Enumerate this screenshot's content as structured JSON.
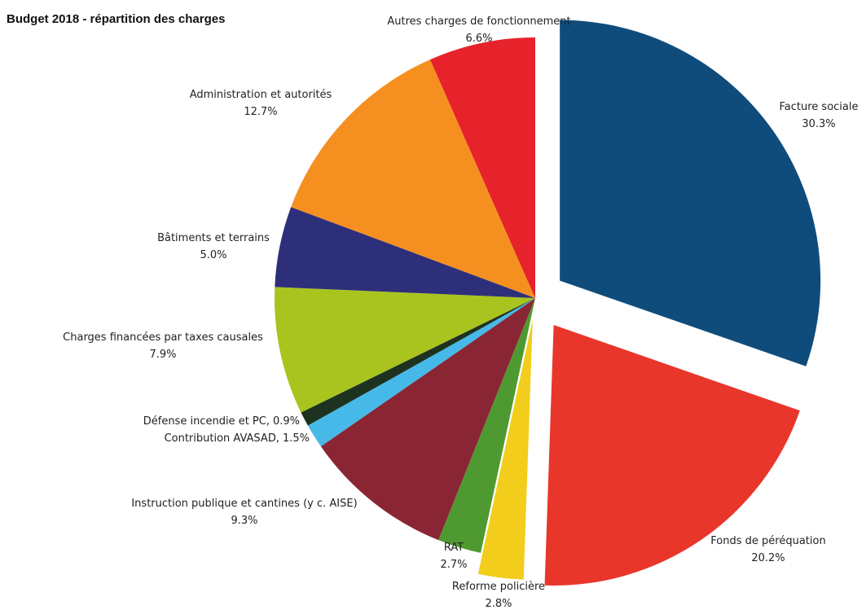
{
  "chart_data": {
    "type": "pie",
    "title": "Budget 2018 - répartition des charges",
    "categories": [
      "Facture sociale",
      "Fonds de péréquation",
      "Reforme policière",
      "RAT",
      "Instruction publique et cantines (y c. AISE)",
      "Contribution AVASAD,",
      "Défense incendie et PC,",
      "Charges financées par taxes causales",
      "Bâtiments et terrains",
      "Administration  et autorités",
      "Autres charges de fonctionnement"
    ],
    "values": [
      30.3,
      20.2,
      2.8,
      2.7,
      9.3,
      1.5,
      0.9,
      7.9,
      5.0,
      12.7,
      6.6
    ],
    "value_labels": [
      "30.3%",
      "20.2%",
      "2.8%",
      "2.7%",
      "9.3%",
      "1.5%",
      "0.9%",
      "7.9%",
      "5.0%",
      "12.7%",
      "6.6%"
    ],
    "colors": [
      "#0f4c7b",
      "#e8362b",
      "#f2cd1b",
      "#4f9a30",
      "#8a2633",
      "#47b9e9",
      "#1d3320",
      "#a9c41f",
      "#2e2f7b",
      "#f59020",
      "#e6222a"
    ]
  }
}
